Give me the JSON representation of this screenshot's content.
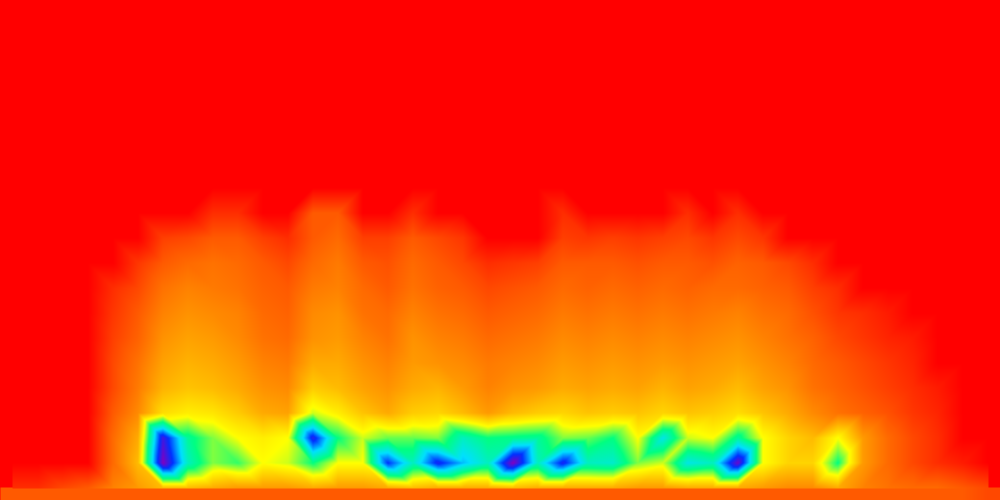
{
  "chart_data": {
    "type": "heatmap",
    "tick_labels": false,
    "color_range": [
      0,
      7
    ],
    "cells": [
      [
        0,
        0,
        0,
        0,
        0,
        0,
        0,
        0,
        0,
        0,
        0,
        0,
        0,
        0,
        0,
        0,
        0,
        0,
        0,
        0,
        0,
        0,
        0,
        0,
        0,
        0,
        0,
        0,
        0,
        0,
        0,
        0,
        0,
        0,
        0,
        0,
        0,
        0,
        0,
        0
      ],
      [
        0,
        0,
        0,
        0,
        0,
        0,
        0,
        0,
        0,
        0,
        0,
        0,
        0,
        0,
        0,
        0,
        0,
        0,
        0,
        0,
        0,
        0,
        0,
        0,
        0,
        0,
        0,
        0,
        0,
        0,
        0,
        0,
        0,
        0,
        0,
        0,
        0,
        0,
        0,
        0
      ],
      [
        0,
        0,
        0,
        0,
        0,
        0,
        0,
        0,
        0,
        0,
        0,
        0,
        0,
        0,
        0,
        0,
        0,
        0,
        0,
        0,
        0,
        0,
        0,
        0,
        0,
        0,
        0,
        0,
        0,
        0,
        0,
        0,
        0,
        0,
        0,
        0,
        0,
        0,
        0,
        0
      ],
      [
        0,
        0,
        0,
        0,
        0,
        0,
        0,
        0,
        0,
        0,
        0,
        0,
        0,
        0,
        0,
        0,
        0,
        0,
        0,
        0,
        0,
        0,
        0,
        0,
        0,
        0,
        0,
        0,
        0,
        0,
        0,
        0,
        0,
        0,
        0,
        0,
        0,
        0,
        0,
        0
      ],
      [
        0,
        0,
        0,
        0,
        0,
        0,
        0,
        0,
        0,
        0,
        0,
        0,
        0,
        0,
        0,
        0,
        0,
        0,
        0,
        0,
        0,
        0,
        0,
        0,
        0,
        0,
        0,
        0,
        0,
        0,
        0,
        0,
        0,
        0,
        0,
        0,
        0,
        0,
        0,
        0
      ],
      [
        0,
        0,
        0,
        0,
        0,
        0,
        0,
        0,
        0,
        0,
        0,
        0,
        0,
        0,
        0,
        0,
        0,
        0,
        0,
        0,
        0,
        0,
        0,
        0,
        0,
        0,
        0,
        0,
        0,
        0,
        0,
        0,
        0,
        0,
        0,
        0,
        0,
        0,
        0,
        0
      ],
      [
        0,
        0,
        0,
        0,
        0,
        0,
        0,
        0,
        0,
        0,
        0,
        0,
        0,
        0,
        0,
        0,
        0,
        0,
        0,
        0,
        0,
        0,
        0,
        0,
        0,
        0,
        0,
        0,
        0,
        0,
        0,
        0,
        0,
        0,
        0,
        0,
        0,
        0,
        0,
        0
      ],
      [
        0,
        0,
        0,
        0,
        0,
        0,
        0,
        0,
        0,
        0,
        0,
        0,
        0,
        0,
        0,
        0,
        0,
        0,
        0,
        0,
        0,
        0,
        0,
        0,
        0,
        0,
        0,
        0,
        0,
        0,
        0,
        0,
        0,
        0,
        0,
        0,
        0,
        0,
        0,
        0
      ],
      [
        0,
        0,
        0,
        0,
        0,
        0,
        0,
        0,
        0.5,
        0.5,
        0,
        0,
        1,
        1,
        0,
        0,
        0.5,
        0,
        0,
        0,
        0,
        0,
        0.5,
        0,
        0,
        0,
        0,
        0.5,
        0,
        0.5,
        0,
        0,
        0,
        0,
        0,
        0,
        0,
        0,
        0,
        0
      ],
      [
        0,
        0,
        0,
        0,
        0,
        0,
        0.7,
        0.8,
        1,
        1,
        0.7,
        0.5,
        1,
        1.2,
        0.7,
        0.7,
        1,
        0.8,
        0.6,
        0,
        0,
        0,
        0.7,
        0.6,
        0.7,
        0.6,
        0.7,
        0.8,
        0.6,
        0.8,
        0.6,
        0,
        0,
        0,
        0,
        0,
        0,
        0,
        0,
        0
      ],
      [
        0,
        0,
        0,
        0,
        0,
        0.6,
        1,
        1.2,
        1.3,
        1.2,
        1,
        0.8,
        1.2,
        1.4,
        1,
        0.9,
        1.2,
        1,
        0.8,
        0.5,
        0.6,
        0.7,
        1,
        1,
        1,
        0.9,
        1,
        1,
        0.9,
        1.1,
        1,
        0.8,
        0.5,
        0,
        0,
        0,
        0,
        0,
        0,
        0
      ],
      [
        0,
        0,
        0,
        0,
        0.5,
        0.8,
        1.3,
        1.5,
        1.4,
        1.3,
        1.1,
        1,
        1.4,
        1.5,
        1.2,
        1,
        1.3,
        1.1,
        1,
        0.8,
        0.9,
        1,
        1.2,
        1.1,
        1.2,
        1.1,
        1.2,
        1.1,
        1.2,
        1.2,
        1.1,
        1,
        0.7,
        0.5,
        0,
        0,
        0,
        0,
        0,
        0
      ],
      [
        0,
        0,
        0,
        0,
        0.6,
        1,
        1.5,
        1.7,
        1.6,
        1.5,
        1.2,
        1.1,
        1.6,
        1.7,
        1.3,
        1.2,
        1.5,
        1.3,
        1.2,
        1,
        1.1,
        1.2,
        1.4,
        1.3,
        1.4,
        1.3,
        1.4,
        1.3,
        1.4,
        1.5,
        1.3,
        1.2,
        0.9,
        0.6,
        0.5,
        0.3,
        0,
        0,
        0,
        0
      ],
      [
        0,
        0,
        0,
        0,
        0.7,
        1.1,
        1.7,
        1.9,
        1.8,
        1.6,
        1.3,
        1.2,
        1.7,
        1.8,
        1.5,
        1.3,
        1.7,
        1.5,
        1.4,
        1.2,
        1.3,
        1.4,
        1.6,
        1.5,
        1.6,
        1.5,
        1.6,
        1.5,
        1.6,
        1.7,
        1.5,
        1.3,
        1.1,
        0.8,
        0.6,
        0.4,
        0.3,
        0,
        0,
        0
      ],
      [
        0,
        0,
        0,
        0,
        0.8,
        1.3,
        1.9,
        2.1,
        2,
        1.8,
        1.5,
        1.4,
        2,
        2,
        1.7,
        1.5,
        1.8,
        1.7,
        1.6,
        1.4,
        1.5,
        1.6,
        1.8,
        1.7,
        1.8,
        1.7,
        1.8,
        1.7,
        1.8,
        1.9,
        1.7,
        1.5,
        1.2,
        1,
        0.8,
        0.6,
        0.4,
        0,
        0,
        0
      ],
      [
        0,
        0,
        0,
        0,
        0.8,
        1.4,
        2.1,
        2.3,
        2.2,
        2,
        1.7,
        1.6,
        2.4,
        2.2,
        1.9,
        1.7,
        2,
        2.1,
        1.8,
        1.5,
        1.7,
        1.8,
        2,
        1.9,
        2,
        1.9,
        2.1,
        1.9,
        2,
        2.2,
        1.9,
        1.7,
        1.3,
        1.1,
        0.9,
        0.7,
        0.5,
        0.3,
        0,
        0
      ],
      [
        0,
        0,
        0,
        0,
        1,
        1.6,
        2.6,
        2.8,
        2.7,
        2.4,
        2,
        1.9,
        3.2,
        2.8,
        2.3,
        2,
        2.4,
        2.5,
        2.2,
        1.8,
        2.2,
        2.4,
        2.5,
        2.3,
        2.4,
        2.3,
        2.5,
        2.3,
        2.4,
        2.6,
        2.3,
        2,
        1.6,
        1.3,
        1.1,
        0.9,
        0.6,
        0.4,
        0,
        0
      ],
      [
        0,
        0,
        0,
        0,
        1.2,
        2,
        6.5,
        4.2,
        3.5,
        3,
        2.8,
        3,
        6.3,
        4,
        3.2,
        3.6,
        3.6,
        3.5,
        4.5,
        4,
        4.1,
        4.2,
        3.5,
        3.6,
        4,
        3,
        4.8,
        3.2,
        3,
        4.2,
        3,
        2.5,
        2.2,
        3,
        1.8,
        1.2,
        0.8,
        0.5,
        0,
        0
      ],
      [
        0,
        0,
        0,
        0,
        1.2,
        2.2,
        7,
        4.5,
        3.5,
        3.8,
        3,
        3.2,
        4,
        3,
        3,
        6,
        4.5,
        6.2,
        5.2,
        4.5,
        7,
        4.5,
        6.2,
        4.5,
        4.6,
        3.5,
        3.2,
        4.8,
        4.5,
        6.8,
        3,
        2.5,
        2.5,
        4,
        1.8,
        1.2,
        0.8,
        0.5,
        0.3,
        0
      ],
      [
        0.5,
        0.5,
        0.8,
        1,
        1.5,
        1.8,
        2.2,
        2.2,
        2,
        1.8,
        1.8,
        1.8,
        2,
        1.8,
        1.8,
        2,
        2.2,
        2,
        2,
        2,
        2.2,
        2,
        2,
        2,
        2,
        1.8,
        1.8,
        2,
        2,
        2,
        1.8,
        1.6,
        1.6,
        2,
        1.5,
        1.3,
        1.2,
        1.2,
        1,
        0.8
      ]
    ]
  }
}
